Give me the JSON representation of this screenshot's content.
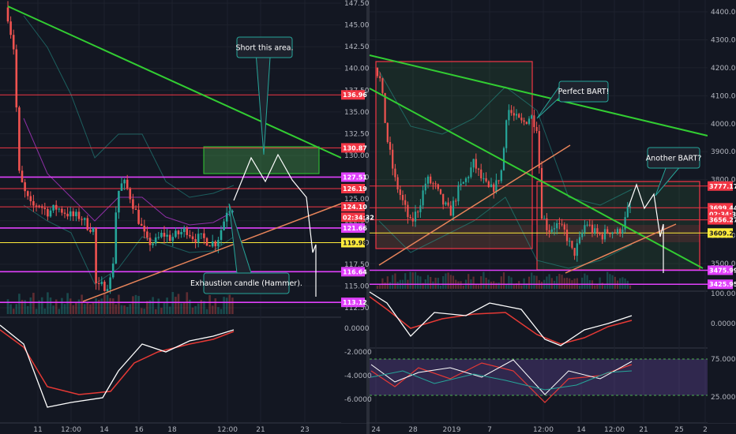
{
  "chart_data": [
    {
      "type": "candlestick",
      "panel": "left-main",
      "y_ticks": [
        "147.50",
        "145.00",
        "142.50",
        "140.00",
        "137.50",
        "135.00",
        "132.50",
        "130.00",
        "127.50",
        "125.00",
        "122.50",
        "120.00",
        "117.50",
        "115.00",
        "112.50"
      ],
      "x_ticks": [
        "11",
        "12:00",
        "14",
        "16",
        "18",
        "12:00",
        "21",
        "23"
      ],
      "price_labels": [
        {
          "text": "136.96",
          "value": 136.96,
          "color": "#f23645"
        },
        {
          "text": "130.87",
          "value": 130.87,
          "color": "#f23645"
        },
        {
          "text": "127.51",
          "value": 127.51,
          "color": "#e040fb"
        },
        {
          "text": "126.19",
          "value": 126.19,
          "color": "#f23645"
        },
        {
          "text": "124.10",
          "value": 124.1,
          "color": "#f23645"
        },
        {
          "text": "02:34:32",
          "value": 122.9,
          "color": "#f23645"
        },
        {
          "text": "121.66",
          "value": 121.66,
          "color": "#e040fb"
        },
        {
          "text": "119.98",
          "value": 119.98,
          "color": "#ffeb3b"
        },
        {
          "text": "116.64",
          "value": 116.64,
          "color": "#e040fb"
        },
        {
          "text": "113.12",
          "value": 113.12,
          "color": "#e040fb"
        }
      ],
      "annotations": [
        {
          "text": "Short this area."
        },
        {
          "text": "Exhaustion candle (Hammer)."
        }
      ]
    },
    {
      "type": "line",
      "panel": "left-oscillator",
      "y_ticks": [
        "0.0000",
        "-2.0000",
        "-4.0000",
        "-6.0000"
      ]
    },
    {
      "type": "candlestick",
      "panel": "right-main",
      "y_ticks": [
        "4400.00",
        "4300.00",
        "4200.00",
        "4100.00",
        "4000.00",
        "3900.00",
        "3800.00",
        "3600.00",
        "3500.00"
      ],
      "x_ticks": [
        "24",
        "28",
        "2019",
        "7",
        "12:00",
        "14",
        "12:00",
        "21",
        "25",
        "2"
      ],
      "price_labels": [
        {
          "text": "3777.17",
          "value": 3777.17,
          "color": "#f23645"
        },
        {
          "text": "3699.44",
          "value": 3699.44,
          "color": "#f23645"
        },
        {
          "text": "02:34:32",
          "value": 3677,
          "color": "#f23645"
        },
        {
          "text": "3656.27",
          "value": 3656.27,
          "color": "#f23645"
        },
        {
          "text": "3609.21",
          "value": 3609.21,
          "color": "#ffeb3b"
        },
        {
          "text": "3475.99",
          "value": 3475.99,
          "color": "#e040fb"
        },
        {
          "text": "3425.95",
          "value": 3425.95,
          "color": "#e040fb"
        }
      ],
      "annotations": [
        {
          "text": "Perfect BART!"
        },
        {
          "text": "Another BART?"
        }
      ]
    },
    {
      "type": "line",
      "panel": "right-oscillator",
      "y_ticks": [
        "100.0000",
        "0.0000"
      ]
    },
    {
      "type": "line",
      "panel": "right-rsi",
      "y_ticks": [
        "75.0000",
        "25.0000"
      ]
    }
  ],
  "colors": {
    "background": "#131722",
    "up": "#26a69a",
    "down": "#ef5350",
    "trend": "#32cd32",
    "support": "#e8845a",
    "level_red": "#f23645",
    "level_magenta": "#e040fb"
  }
}
